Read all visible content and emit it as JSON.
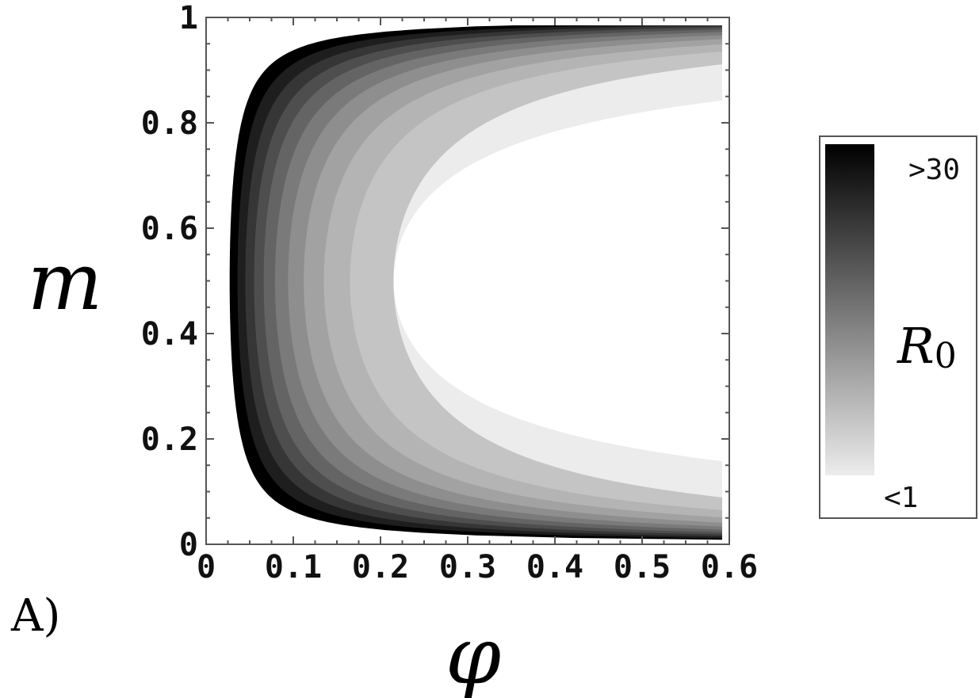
{
  "chart_data": {
    "type": "heatmap",
    "panel_label": "A)",
    "xlabel": "φ",
    "ylabel": "m",
    "xlim": [
      0,
      0.6
    ],
    "ylim": [
      0,
      1
    ],
    "x_ticks": [
      "0",
      "0.1",
      "0.2",
      "0.3",
      "0.4",
      "0.5",
      "0.6"
    ],
    "x_tick_values": [
      0,
      0.1,
      0.2,
      0.3,
      0.4,
      0.5,
      0.6
    ],
    "y_ticks": [
      "0",
      "0.2",
      "0.4",
      "0.6",
      "0.8",
      "1"
    ],
    "y_tick_values": [
      0,
      0.2,
      0.4,
      0.6,
      0.8,
      1
    ],
    "colorbar": {
      "label_main": "R",
      "label_sub": "0",
      "top_label": ">30",
      "bottom_label": "<1",
      "color_top": "#000000",
      "color_bottom": "#ececec"
    },
    "contour_levels": [
      {
        "phi_at_m_mid": 0.027,
        "fill": "#000000"
      },
      {
        "phi_at_m_mid": 0.036,
        "fill": "#1e1e1e"
      },
      {
        "phi_at_m_mid": 0.045,
        "fill": "#363636"
      },
      {
        "phi_at_m_mid": 0.055,
        "fill": "#4e4e4e"
      },
      {
        "phi_at_m_mid": 0.066,
        "fill": "#646464"
      },
      {
        "phi_at_m_mid": 0.079,
        "fill": "#7a7a7a"
      },
      {
        "phi_at_m_mid": 0.094,
        "fill": "#8e8e8e"
      },
      {
        "phi_at_m_mid": 0.112,
        "fill": "#a2a2a2"
      },
      {
        "phi_at_m_mid": 0.135,
        "fill": "#b4b4b4"
      },
      {
        "phi_at_m_mid": 0.165,
        "fill": "#c4c4c4"
      },
      {
        "phi_at_m_mid": 0.215,
        "fill": "#d6d6d6"
      },
      {
        "phi_at_m_mid": 0.215,
        "fill": "#ececec"
      }
    ],
    "background_fill": "#ffffff"
  }
}
